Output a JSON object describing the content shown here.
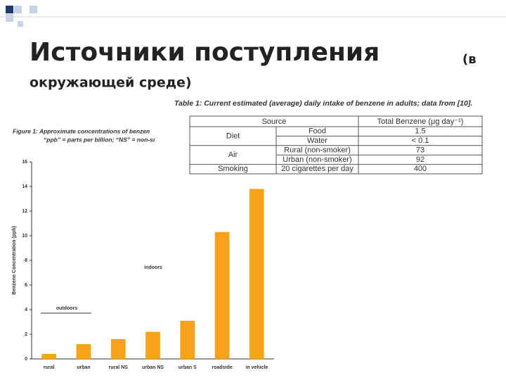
{
  "header": {
    "title": [
      "Источники поступления",
      "(в",
      "окружающей среде)"
    ]
  },
  "table": {
    "caption": "Table 1: Current estimated (average) daily intake of benzene in adults; data from [10].",
    "columns": [
      "Source",
      "Total Benzene (μg day⁻¹)"
    ],
    "groups": [
      {
        "name": "Diet",
        "items": [
          {
            "label": "Food",
            "value": 1.5
          },
          {
            "label": "Water",
            "value": "< 0.1"
          }
        ]
      },
      {
        "name": "Air",
        "items": [
          {
            "label": "Rural (non-smoker)",
            "value": 73
          },
          {
            "label": "Urban (non-smoker)",
            "value": 92
          }
        ]
      },
      {
        "name": "Smoking",
        "items": [
          {
            "label": "20 cigarettes per day",
            "value": 400
          }
        ]
      }
    ]
  },
  "chart_data": {
    "type": "bar",
    "caption": [
      "Figure 1: Approximate concentrations of benzen",
      "“ppb” = parts per billion; “NS” = non-sı"
    ],
    "y_label": "Benzene Concentration (ppb)",
    "annotations": [
      "outdoors",
      "indoors"
    ],
    "categories": [
      "rural",
      "urban",
      "rural NS",
      "urban NS",
      "urban S",
      "roadside",
      "in vehicle"
    ],
    "values": [
      0.4,
      1.2,
      1.6,
      2.2,
      3.1,
      10.3,
      13.8
    ],
    "color": "#f7a21b",
    "ylim": [
      0,
      16
    ],
    "yticks": [
      0,
      2,
      4,
      6,
      8,
      10,
      12,
      14,
      16
    ]
  }
}
